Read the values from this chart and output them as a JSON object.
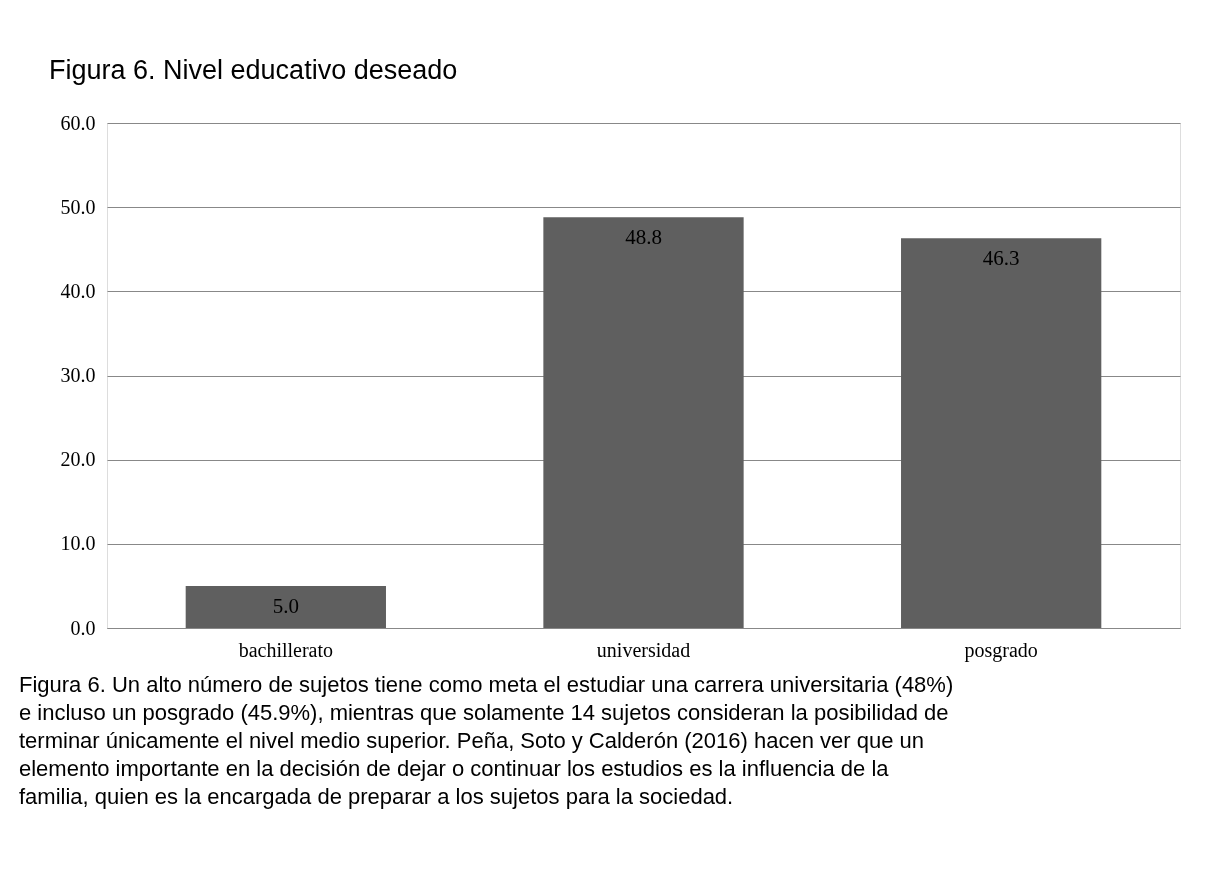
{
  "chart_data": {
    "type": "bar",
    "title": "Figura 6. Nivel educativo deseado",
    "categories": [
      "bachillerato",
      "universidad",
      "posgrado"
    ],
    "values": [
      5.0,
      48.8,
      46.3
    ],
    "color": "#5f5f5f",
    "ylim": [
      0,
      60
    ],
    "yticks": [
      {
        "value": 0,
        "label": "0.0"
      },
      {
        "value": 10,
        "label": "10.0"
      },
      {
        "value": 20,
        "label": "20.0"
      },
      {
        "value": 30,
        "label": "30.0"
      },
      {
        "value": 40,
        "label": "40.0"
      },
      {
        "value": 50,
        "label": "50.0"
      },
      {
        "value": 60,
        "label": "60.0"
      }
    ],
    "grid": "y",
    "value_labels": [
      "5.0",
      "48.8",
      "46.3"
    ],
    "annotations": [
      "Figura 6. Un alto número de sujetos tiene como meta el estudiar una carrera universitaria (48%) e incluso un posgrado (45.9%), mientras que solamente 14 sujetos consideran la posibilidad de terminar únicamente el nivel medio superior. Peña, Soto y Calderón (2016) hacen ver que un elemento importante en la decisión de dejar o continuar los estudios es la influencia de la familia, quien es la encargada de preparar a los sujetos para la sociedad."
    ]
  }
}
